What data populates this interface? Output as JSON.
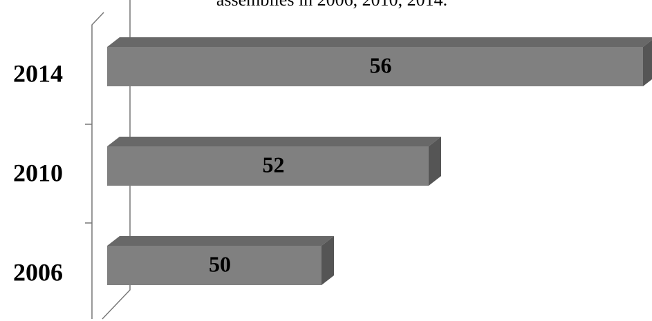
{
  "chart_data": {
    "type": "bar",
    "orientation": "horizontal",
    "title": "assemblies in 2006, 2010, 2014.",
    "categories": [
      "2014",
      "2010",
      "2006"
    ],
    "values": [
      56,
      52,
      50
    ],
    "color": "#808080",
    "xlim": [
      46,
      56
    ]
  }
}
